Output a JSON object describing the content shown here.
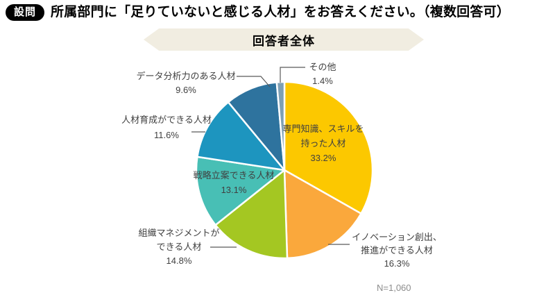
{
  "header": {
    "badge": "設問",
    "title": "所属部門に「足りていないと感じる人材」をお答えください。（複数回答可）"
  },
  "banner": {
    "label": "回答者全体"
  },
  "footnote": "N=1,060",
  "chart_data": {
    "type": "pie",
    "title": "回答者全体",
    "direction": "clockwise",
    "start_angle_deg": 0,
    "legend_position": "none",
    "sample_size": "N=1,060",
    "slice_border_color": "#ffffff",
    "label_color": "#404040",
    "leader_line_color": "#595959",
    "segments": [
      {
        "label": "専門知識、スキルを持った人材",
        "value": 33.2,
        "color": "#fcc800",
        "label_position": "inside",
        "label_lines": [
          "専門知識、スキルを",
          "持った人材",
          "33.2%"
        ]
      },
      {
        "label": "イノベーション創出、推進ができる人材",
        "value": 16.3,
        "color": "#faa83c",
        "label_position": "outside",
        "label_lines": [
          "イノベーション創出、",
          "推進ができる人材",
          "16.3%"
        ]
      },
      {
        "label": "組織マネジメントができる人材",
        "value": 14.8,
        "color": "#a4c722",
        "label_position": "outside",
        "label_lines": [
          "組織マネジメントが",
          "できる人材",
          "14.8%"
        ]
      },
      {
        "label": "戦略立案できる人材",
        "value": 13.1,
        "color": "#48bfb5",
        "label_position": "inside",
        "label_lines": [
          "戦略立案できる人材",
          "13.1%"
        ]
      },
      {
        "label": "人材育成ができる人材",
        "value": 11.6,
        "color": "#1d95bf",
        "label_position": "outside",
        "label_lines": [
          "人材育成ができる人材",
          "11.6%"
        ]
      },
      {
        "label": "データ分析力のある人材",
        "value": 9.6,
        "color": "#2e739e",
        "label_position": "outside",
        "label_lines": [
          "データ分析力のある人材",
          "9.6%"
        ]
      },
      {
        "label": "その他",
        "value": 1.4,
        "color": "#7ea0b5",
        "label_position": "outside",
        "label_lines": [
          "その他",
          "1.4%"
        ]
      }
    ]
  }
}
